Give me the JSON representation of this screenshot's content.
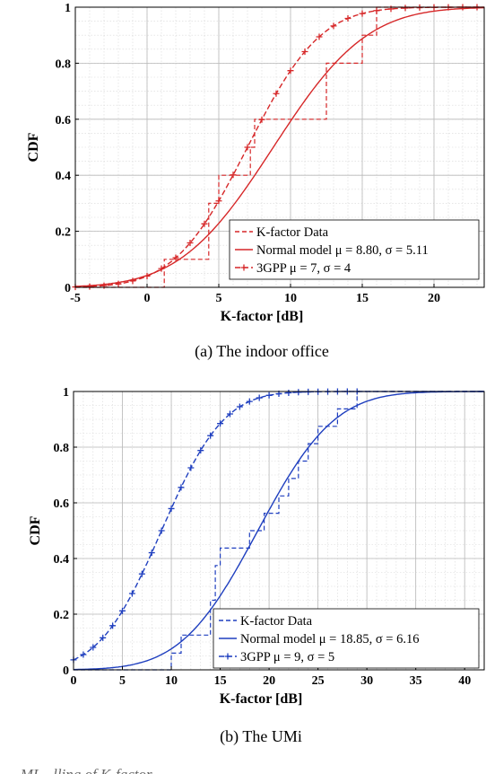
{
  "figure": {
    "bottom_fragment": "...ML...lling of K-factor ... ... ... ..."
  },
  "chart_data": [
    {
      "type": "line",
      "caption": "(a)  The indoor office",
      "xlabel": "K-factor [dB]",
      "ylabel": "CDF",
      "xlim": [
        -5,
        23.5
      ],
      "ylim": [
        0,
        1
      ],
      "xticks": [
        -5,
        0,
        5,
        10,
        15,
        20
      ],
      "yticks": [
        0,
        0.2,
        0.4,
        0.6,
        0.8,
        1
      ],
      "ytick_labels": [
        "0",
        "0.2",
        "0.4",
        "0.6",
        "0.8",
        "1"
      ],
      "grid": "major and minor",
      "legend_position": "bottom-right",
      "color": "#d62728",
      "series": [
        {
          "name": "K-factor Data",
          "style": "dashed-step",
          "x": [
            -5,
            1.2,
            1.2,
            4.3,
            4.3,
            5.0,
            5.0,
            7.2,
            7.2,
            7.5,
            7.5,
            8.7,
            8.7,
            12.5,
            12.5,
            13.0,
            13.0,
            15.0,
            15.0,
            16.0,
            16.0,
            23.5
          ],
          "y": [
            0,
            0,
            0.1,
            0.1,
            0.3,
            0.3,
            0.4,
            0.4,
            0.5,
            0.5,
            0.6,
            0.6,
            0.6,
            0.6,
            0.8,
            0.8,
            0.8,
            0.8,
            0.9,
            0.9,
            1.0,
            1.0
          ]
        },
        {
          "name": "Normal model",
          "legend_label": "Normal model μ = 8.80, σ = 5.11",
          "style": "solid",
          "mu": 8.8,
          "sigma": 5.11
        },
        {
          "name": "3GPP",
          "legend_label": "3GPP μ = 7, σ = 4",
          "style": "dashed-plus",
          "mu": 7,
          "sigma": 4
        }
      ]
    },
    {
      "type": "line",
      "caption": "(b)  The UMi",
      "xlabel": "K-factor [dB]",
      "ylabel": "CDF",
      "xlim": [
        0,
        42
      ],
      "ylim": [
        0,
        1
      ],
      "xticks": [
        0,
        5,
        10,
        15,
        20,
        25,
        30,
        35,
        40
      ],
      "yticks": [
        0,
        0.2,
        0.4,
        0.6,
        0.8,
        1
      ],
      "ytick_labels": [
        "0",
        "0.2",
        "0.4",
        "0.6",
        "0.8",
        "1"
      ],
      "grid": "major and minor",
      "legend_position": "bottom-right",
      "color": "#1f3fbf",
      "series": [
        {
          "name": "K-factor Data",
          "style": "dashed-step",
          "x": [
            0,
            10.0,
            10.0,
            11.0,
            11.0,
            14.0,
            14.0,
            14.5,
            14.5,
            15.0,
            15.0,
            18.0,
            18.0,
            19.5,
            19.5,
            21.0,
            21.0,
            22.0,
            22.0,
            23.0,
            23.0,
            24.0,
            24.0,
            25.0,
            25.0,
            27.0,
            27.0,
            29.0,
            29.0,
            30.5,
            30.5,
            42
          ],
          "y": [
            0,
            0,
            0.06,
            0.06,
            0.125,
            0.125,
            0.25,
            0.25,
            0.375,
            0.375,
            0.4375,
            0.4375,
            0.5,
            0.5,
            0.5625,
            0.5625,
            0.625,
            0.625,
            0.6875,
            0.6875,
            0.75,
            0.75,
            0.8125,
            0.8125,
            0.875,
            0.875,
            0.9375,
            0.9375,
            1.0,
            1.0,
            1.0,
            1.0
          ]
        },
        {
          "name": "Normal model",
          "legend_label": "Normal model μ = 18.85, σ = 6.16",
          "style": "solid",
          "mu": 18.85,
          "sigma": 6.16
        },
        {
          "name": "3GPP",
          "legend_label": "3GPP μ = 9, σ = 5",
          "style": "dashed-plus",
          "mu": 9,
          "sigma": 5
        }
      ]
    }
  ]
}
